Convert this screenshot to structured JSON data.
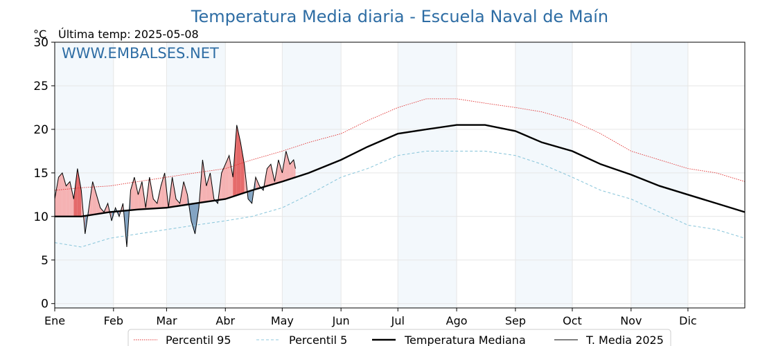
{
  "chart_data": {
    "type": "line",
    "title": "Temperatura Media diaria - Escuela Naval de Maín",
    "unit_label": "°C",
    "last_reading_label": "Última temp: 2025-05-08",
    "watermark": "WWW.EMBALSES.NET",
    "ylim": [
      -0.5,
      30
    ],
    "yticks": [
      0,
      5,
      10,
      15,
      20,
      25,
      30
    ],
    "grid": true,
    "legend_position": "bottom",
    "months": [
      "Ene",
      "Feb",
      "Mar",
      "Abr",
      "May",
      "Jun",
      "Jul",
      "Ago",
      "Sep",
      "Oct",
      "Nov",
      "Dic"
    ],
    "month_start_days": [
      1,
      32,
      60,
      91,
      121,
      152,
      182,
      213,
      244,
      274,
      305,
      335
    ],
    "legend": [
      {
        "name": "Percentil 95",
        "style": "dotted",
        "color": "#e03030"
      },
      {
        "name": "Percentil 5",
        "style": "dashed",
        "color": "#8ec8dc"
      },
      {
        "name": "Temperatura Mediana",
        "style": "solid-thick",
        "color": "#000000"
      },
      {
        "name": "T. Media 2025",
        "style": "solid-thin",
        "color": "#000000"
      }
    ],
    "colors": {
      "above": "#f4a6a6",
      "above_strong": "#e05050",
      "below": "#6f95b8"
    },
    "series": [
      {
        "name": "Percentil 95",
        "key": "p95",
        "x_days": [
          1,
          15,
          30,
          45,
          60,
          75,
          91,
          105,
          121,
          135,
          152,
          166,
          182,
          197,
          213,
          228,
          244,
          258,
          274,
          289,
          305,
          320,
          335,
          350,
          365
        ],
        "values": [
          13.0,
          13.3,
          13.5,
          14.0,
          14.5,
          15.0,
          15.5,
          16.5,
          17.5,
          18.5,
          19.5,
          21.0,
          22.5,
          23.5,
          23.5,
          23.0,
          22.5,
          22.0,
          21.0,
          19.5,
          17.5,
          16.5,
          15.5,
          15.0,
          14.0
        ]
      },
      {
        "name": "Percentil 5",
        "key": "p5",
        "x_days": [
          1,
          15,
          30,
          45,
          60,
          75,
          91,
          105,
          121,
          135,
          152,
          166,
          182,
          197,
          213,
          228,
          244,
          258,
          274,
          289,
          305,
          320,
          335,
          350,
          365
        ],
        "values": [
          7.0,
          6.5,
          7.5,
          8.0,
          8.5,
          9.0,
          9.5,
          10.0,
          11.0,
          12.5,
          14.5,
          15.5,
          17.0,
          17.5,
          17.5,
          17.5,
          17.0,
          16.0,
          14.5,
          13.0,
          12.0,
          10.5,
          9.0,
          8.5,
          7.5
        ]
      },
      {
        "name": "Temperatura Mediana",
        "key": "median",
        "x_days": [
          1,
          15,
          30,
          45,
          60,
          75,
          91,
          105,
          121,
          135,
          152,
          166,
          182,
          197,
          213,
          228,
          244,
          258,
          274,
          289,
          305,
          320,
          335,
          350,
          365
        ],
        "values": [
          10.0,
          10.0,
          10.5,
          10.8,
          11.0,
          11.5,
          12.0,
          13.0,
          14.0,
          15.0,
          16.5,
          18.0,
          19.5,
          20.0,
          20.5,
          20.5,
          19.8,
          18.5,
          17.5,
          16.0,
          14.8,
          13.5,
          12.5,
          11.5,
          10.5
        ]
      },
      {
        "name": "T. Media 2025",
        "key": "t2025",
        "x_days": [
          1,
          3,
          5,
          7,
          9,
          11,
          13,
          15,
          17,
          19,
          21,
          23,
          25,
          27,
          29,
          31,
          33,
          35,
          37,
          39,
          41,
          43,
          45,
          47,
          49,
          51,
          53,
          55,
          57,
          59,
          61,
          63,
          65,
          67,
          69,
          71,
          73,
          75,
          77,
          79,
          81,
          83,
          85,
          87,
          89,
          91,
          93,
          95,
          97,
          99,
          101,
          103,
          105,
          107,
          109,
          111,
          113,
          115,
          117,
          119,
          121,
          123,
          125,
          127,
          128
        ],
        "values": [
          12.0,
          14.5,
          15.0,
          13.5,
          14.0,
          12.0,
          15.5,
          13.0,
          8.0,
          11.0,
          14.0,
          12.5,
          11.0,
          10.5,
          11.5,
          9.5,
          11.0,
          10.0,
          11.5,
          6.5,
          13.0,
          14.5,
          12.5,
          14.0,
          11.0,
          14.5,
          12.0,
          11.5,
          13.5,
          15.0,
          11.0,
          14.5,
          12.0,
          11.5,
          14.0,
          12.5,
          9.5,
          8.0,
          11.0,
          16.5,
          13.5,
          15.0,
          12.0,
          11.5,
          15.0,
          16.0,
          17.0,
          14.5,
          20.5,
          18.5,
          16.0,
          12.0,
          11.5,
          14.5,
          13.5,
          13.0,
          15.5,
          16.0,
          14.0,
          16.5,
          15.0,
          17.5,
          16.0,
          16.5,
          15.5
        ]
      }
    ]
  }
}
